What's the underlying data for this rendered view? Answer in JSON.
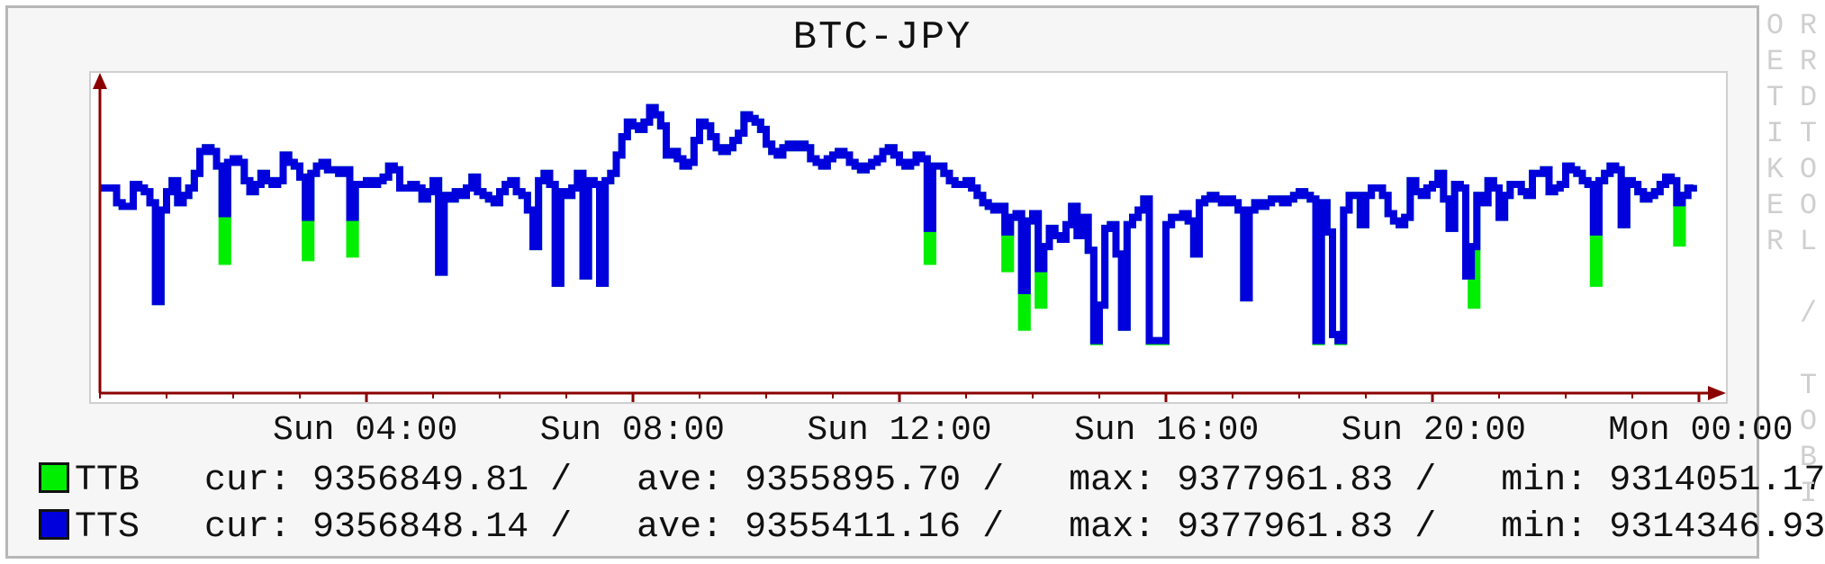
{
  "title": "BTC-JPY",
  "watermark": "RRDTOOL / TOBI OETIKER",
  "chart": {
    "type": "line",
    "background_color": "#ffffff",
    "frame_bg": "#f6f6f6",
    "frame_border": "#b7b7b7",
    "plot_border": "#cfcfcf",
    "axis_color": "#8b0000",
    "title_fontsize": 44,
    "label_fontsize": 38,
    "tick_fontsize": 38,
    "line_width": 8,
    "x_range": [
      0,
      288
    ],
    "xticks": [
      {
        "pos": 48,
        "label": "Sun 04:00"
      },
      {
        "pos": 96,
        "label": "Sun 08:00"
      },
      {
        "pos": 144,
        "label": "Sun 12:00"
      },
      {
        "pos": 192,
        "label": "Sun 16:00"
      },
      {
        "pos": 240,
        "label": "Sun 20:00"
      },
      {
        "pos": 288,
        "label": "Mon 00:00"
      }
    ],
    "y_range": [
      9300000,
      9385000
    ],
    "series": [
      {
        "name": "TTB",
        "color": "#00ee00",
        "legend_swatch": "#00ee00",
        "stats": {
          "cur": "9356849.81",
          "ave": "9355895.70",
          "max": "9377961.83",
          "min": "9314051.17"
        },
        "values": [
          9356000,
          9356000,
          9356000,
          9352000,
          9351000,
          9351000,
          9357000,
          9356000,
          9355000,
          9352000,
          9325000,
          9350000,
          9355000,
          9358000,
          9352000,
          9354000,
          9356000,
          9360000,
          9366000,
          9367000,
          9366000,
          9362000,
          9336000,
          9363000,
          9364000,
          9363000,
          9358000,
          9355000,
          9357000,
          9360000,
          9358000,
          9357000,
          9358000,
          9365000,
          9363000,
          9362000,
          9359000,
          9337000,
          9360000,
          9362000,
          9363000,
          9361000,
          9361000,
          9360000,
          9361000,
          9338000,
          9357000,
          9357000,
          9358000,
          9357000,
          9358000,
          9359000,
          9362000,
          9361000,
          9356000,
          9356000,
          9357000,
          9356000,
          9353000,
          9355000,
          9358000,
          9333000,
          9354000,
          9353000,
          9355000,
          9354000,
          9356000,
          9359000,
          9355000,
          9354000,
          9353000,
          9352000,
          9355000,
          9357000,
          9358000,
          9355000,
          9354000,
          9350000,
          9340000,
          9358000,
          9360000,
          9357000,
          9330000,
          9355000,
          9354000,
          9356000,
          9360000,
          9332000,
          9358000,
          9357000,
          9330000,
          9358000,
          9360000,
          9365000,
          9370000,
          9374000,
          9373000,
          9372000,
          9374000,
          9377961,
          9376000,
          9373000,
          9365000,
          9366000,
          9364000,
          9362000,
          9363000,
          9369000,
          9374000,
          9373000,
          9370000,
          9367000,
          9366000,
          9367000,
          9369000,
          9371000,
          9376000,
          9375000,
          9374000,
          9372000,
          9368000,
          9366000,
          9365000,
          9367000,
          9368000,
          9367000,
          9368000,
          9367000,
          9364000,
          9363000,
          9362000,
          9364000,
          9365000,
          9366000,
          9365000,
          9363000,
          9362000,
          9361000,
          9362000,
          9363000,
          9364000,
          9366000,
          9367000,
          9365000,
          9363000,
          9362000,
          9363000,
          9365000,
          9364000,
          9336000,
          9362000,
          9362000,
          9360000,
          9358000,
          9357000,
          9357000,
          9358000,
          9356000,
          9354000,
          9352000,
          9351000,
          9350000,
          9351000,
          9334000,
          9348000,
          9349000,
          9318000,
          9347000,
          9349000,
          9324000,
          9340000,
          9345000,
          9343000,
          9342000,
          9346000,
          9351000,
          9343000,
          9348000,
          9339000,
          9314051,
          9324000,
          9345000,
          9346000,
          9338000,
          9318000,
          9346000,
          9348000,
          9350000,
          9353000,
          9314051,
          9314051,
          9314051,
          9346000,
          9348000,
          9348000,
          9349000,
          9347000,
          9338000,
          9352000,
          9353000,
          9354000,
          9353000,
          9352000,
          9353000,
          9352000,
          9350000,
          9326000,
          9350000,
          9352000,
          9351000,
          9352000,
          9353000,
          9353000,
          9352000,
          9353000,
          9354000,
          9355000,
          9354000,
          9353000,
          9314051,
          9352000,
          9344000,
          9316000,
          9314051,
          9350000,
          9354000,
          9354000,
          9346000,
          9354000,
          9356000,
          9356000,
          9354000,
          9349000,
          9347000,
          9346000,
          9348000,
          9358000,
          9355000,
          9354000,
          9356000,
          9357000,
          9360000,
          9353000,
          9345000,
          9357000,
          9356000,
          9332000,
          9324000,
          9354000,
          9352000,
          9358000,
          9356000,
          9348000,
          9354000,
          9357000,
          9357000,
          9355000,
          9354000,
          9360000,
          9360000,
          9361000,
          9355000,
          9356000,
          9357000,
          9362000,
          9361000,
          9360000,
          9358000,
          9357000,
          9330000,
          9358000,
          9360000,
          9362000,
          9361000,
          9346000,
          9358000,
          9357000,
          9355000,
          9353000,
          9354000,
          9355000,
          9357000,
          9359000,
          9358000,
          9341000,
          9354000,
          9356000,
          9356849
        ]
      },
      {
        "name": "TTS",
        "color": "#0000dd",
        "legend_swatch": "#0000dd",
        "stats": {
          "cur": "9356848.14",
          "ave": "9355411.16",
          "max": "9377961.83",
          "min": "9314346.93"
        },
        "values": [
          9356000,
          9356000,
          9356000,
          9352000,
          9351000,
          9351000,
          9357000,
          9356000,
          9355000,
          9352000,
          9325000,
          9350000,
          9355000,
          9358000,
          9352000,
          9354000,
          9356000,
          9360000,
          9366000,
          9367000,
          9366000,
          9362000,
          9349000,
          9363000,
          9364000,
          9363000,
          9358000,
          9355000,
          9357000,
          9360000,
          9358000,
          9357000,
          9358000,
          9365000,
          9363000,
          9362000,
          9359000,
          9348000,
          9360000,
          9362000,
          9363000,
          9361000,
          9361000,
          9360000,
          9361000,
          9348000,
          9357000,
          9357000,
          9358000,
          9357000,
          9358000,
          9359000,
          9362000,
          9361000,
          9356000,
          9356000,
          9357000,
          9356000,
          9353000,
          9355000,
          9358000,
          9333000,
          9354000,
          9353000,
          9355000,
          9354000,
          9356000,
          9359000,
          9355000,
          9354000,
          9353000,
          9352000,
          9355000,
          9357000,
          9358000,
          9355000,
          9354000,
          9350000,
          9340000,
          9358000,
          9360000,
          9357000,
          9330000,
          9355000,
          9354000,
          9356000,
          9360000,
          9332000,
          9358000,
          9357000,
          9330000,
          9358000,
          9360000,
          9365000,
          9370000,
          9374000,
          9373000,
          9372000,
          9374000,
          9377961,
          9376000,
          9373000,
          9365000,
          9366000,
          9364000,
          9362000,
          9363000,
          9369000,
          9374000,
          9373000,
          9370000,
          9367000,
          9366000,
          9367000,
          9369000,
          9371000,
          9376000,
          9375000,
          9374000,
          9372000,
          9368000,
          9366000,
          9365000,
          9367000,
          9368000,
          9367000,
          9368000,
          9367000,
          9364000,
          9363000,
          9362000,
          9364000,
          9365000,
          9366000,
          9365000,
          9363000,
          9362000,
          9361000,
          9362000,
          9363000,
          9364000,
          9366000,
          9367000,
          9365000,
          9363000,
          9362000,
          9363000,
          9365000,
          9364000,
          9345000,
          9362000,
          9362000,
          9360000,
          9358000,
          9357000,
          9357000,
          9358000,
          9356000,
          9354000,
          9352000,
          9351000,
          9350000,
          9351000,
          9344000,
          9348000,
          9349000,
          9328000,
          9347000,
          9349000,
          9334000,
          9340000,
          9345000,
          9343000,
          9342000,
          9346000,
          9351000,
          9343000,
          9348000,
          9339000,
          9314346,
          9324000,
          9345000,
          9346000,
          9338000,
          9318000,
          9346000,
          9348000,
          9350000,
          9353000,
          9314346,
          9314346,
          9314346,
          9346000,
          9348000,
          9348000,
          9349000,
          9347000,
          9338000,
          9352000,
          9353000,
          9354000,
          9353000,
          9352000,
          9353000,
          9352000,
          9350000,
          9326000,
          9350000,
          9352000,
          9351000,
          9352000,
          9353000,
          9353000,
          9352000,
          9353000,
          9354000,
          9355000,
          9354000,
          9353000,
          9314346,
          9352000,
          9344000,
          9316000,
          9314346,
          9350000,
          9354000,
          9354000,
          9346000,
          9354000,
          9356000,
          9356000,
          9354000,
          9349000,
          9347000,
          9346000,
          9348000,
          9358000,
          9355000,
          9354000,
          9356000,
          9357000,
          9360000,
          9353000,
          9345000,
          9357000,
          9356000,
          9332000,
          9340000,
          9354000,
          9352000,
          9358000,
          9356000,
          9348000,
          9354000,
          9357000,
          9357000,
          9355000,
          9354000,
          9360000,
          9360000,
          9361000,
          9355000,
          9356000,
          9357000,
          9362000,
          9361000,
          9360000,
          9358000,
          9357000,
          9344000,
          9358000,
          9360000,
          9362000,
          9361000,
          9346000,
          9358000,
          9357000,
          9355000,
          9353000,
          9354000,
          9355000,
          9357000,
          9359000,
          9358000,
          9352000,
          9354000,
          9356000,
          9356848
        ]
      }
    ]
  },
  "legend": {
    "rows": [
      {
        "key": "TTB",
        "swatch": "#00ee00"
      },
      {
        "key": "TTS",
        "swatch": "#0000dd"
      }
    ]
  }
}
